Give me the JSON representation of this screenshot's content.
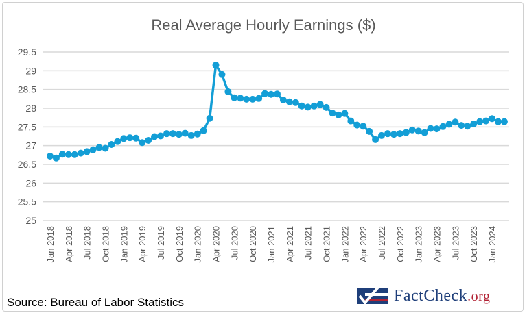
{
  "chart_data": {
    "type": "line",
    "title": "Real Average Hourly Earnings ($)",
    "xlabel": "",
    "ylabel": "",
    "ylim": [
      25,
      29.5
    ],
    "yticks": [
      "25",
      "25.5",
      "26",
      "26.5",
      "27",
      "27.5",
      "28",
      "28.5",
      "29",
      "29.5"
    ],
    "grid": true,
    "x_tick_labels": [
      "Jan 2018",
      "Apr 2018",
      "Jul 2018",
      "Oct 2018",
      "Jan 2019",
      "Apr 2019",
      "Jul 2019",
      "Oct 2019",
      "Jan 2020",
      "Apr 2020",
      "Jul 2020",
      "Oct 2020",
      "Jan 2021",
      "Apr 2021",
      "Jul 2021",
      "Oct 2021",
      "Jan 2022",
      "Apr 2022",
      "Jul 2022",
      "Oct 2022",
      "Jan 2023",
      "Apr 2023",
      "Jul 2023",
      "Oct 2023",
      "Jan 2024"
    ],
    "x_start": "Jan 2018",
    "x_end": "Mar 2024",
    "series_color": "#139ed6",
    "values": [
      26.72,
      26.67,
      26.77,
      26.76,
      26.76,
      26.8,
      26.84,
      26.89,
      26.95,
      26.93,
      27.03,
      27.11,
      27.19,
      27.21,
      27.2,
      27.08,
      27.14,
      27.24,
      27.26,
      27.32,
      27.32,
      27.3,
      27.33,
      27.27,
      27.31,
      27.4,
      27.73,
      29.15,
      28.9,
      28.44,
      28.28,
      28.27,
      28.24,
      28.24,
      28.26,
      28.39,
      28.37,
      28.38,
      28.22,
      28.17,
      28.15,
      28.06,
      28.03,
      28.06,
      28.1,
      28.02,
      27.87,
      27.82,
      27.86,
      27.66,
      27.55,
      27.52,
      27.38,
      27.16,
      27.27,
      27.32,
      27.3,
      27.32,
      27.35,
      27.42,
      27.39,
      27.35,
      27.46,
      27.45,
      27.51,
      27.57,
      27.63,
      27.54,
      27.52,
      27.58,
      27.64,
      27.66,
      27.72,
      27.64,
      27.64
    ]
  },
  "source": "Source: Bureau of Labor Statistics",
  "logo": {
    "text": "FactCheck",
    "suffix": ".org"
  }
}
